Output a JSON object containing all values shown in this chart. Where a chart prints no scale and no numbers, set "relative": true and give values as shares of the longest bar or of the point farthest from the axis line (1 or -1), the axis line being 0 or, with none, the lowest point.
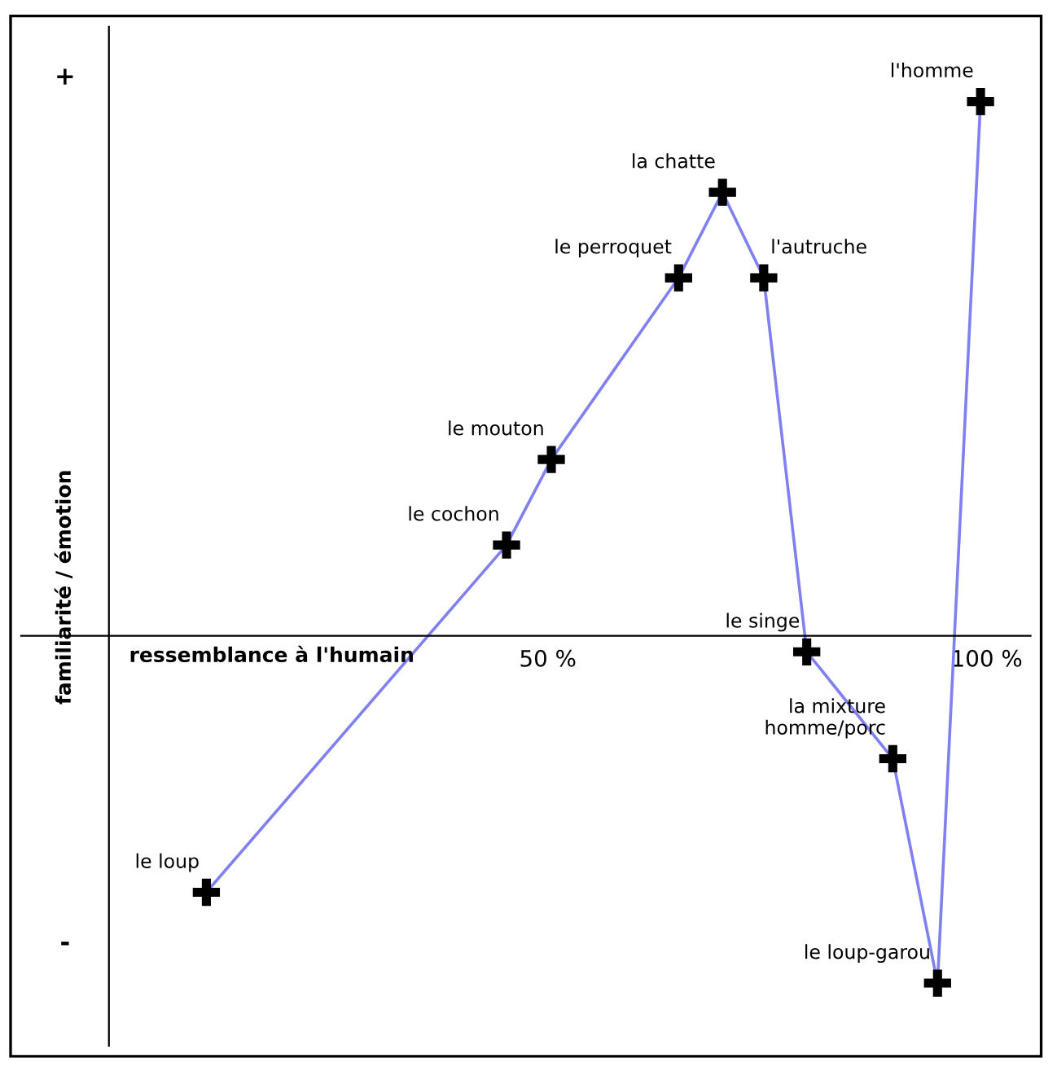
{
  "chart_data": {
    "type": "line",
    "relative": true,
    "xlabel": "ressemblance à l'humain",
    "ylabel": "familiarité / émotion",
    "x": [
      11.1,
      45.3,
      50.4,
      64.9,
      69.9,
      74.6,
      79.5,
      89.3,
      94.4,
      99.3
    ],
    "series": [
      {
        "color": "#8080f0",
        "values": [
          -0.48,
          0.17,
          0.33,
          0.67,
          0.83,
          0.67,
          -0.03,
          -0.23,
          -0.65,
          1
        ]
      }
    ],
    "marker": "cross",
    "grid": false,
    "xlim": [
      -10,
      105
    ],
    "xticks": [
      {
        "value": 50,
        "label": "50 %"
      },
      {
        "value": 100,
        "label": "100 %"
      }
    ],
    "annotations": [
      "+",
      "-",
      {
        "text": "le loup",
        "x": 11.1,
        "y": -0.48
      },
      {
        "text": "le cochon",
        "x": 45.3,
        "y": 0.17
      },
      {
        "text": "le mouton",
        "x": 50.4,
        "y": 0.33
      },
      {
        "text": "le perroquet",
        "x": 64.9,
        "y": 0.67
      },
      {
        "text": "la chatte",
        "x": 69.9,
        "y": 0.83
      },
      {
        "text": "l'autruche",
        "x": 74.6,
        "y": 0.67
      },
      {
        "text": "le singe",
        "x": 79.5,
        "y": -0.03
      },
      {
        "text": "la mixture\nhomme/porc",
        "x": 89.3,
        "y": -0.23
      },
      {
        "text": "le loup-garou",
        "x": 94.4,
        "y": -0.65
      },
      {
        "text": "l'homme",
        "x": 99.3,
        "y": 1
      }
    ]
  }
}
